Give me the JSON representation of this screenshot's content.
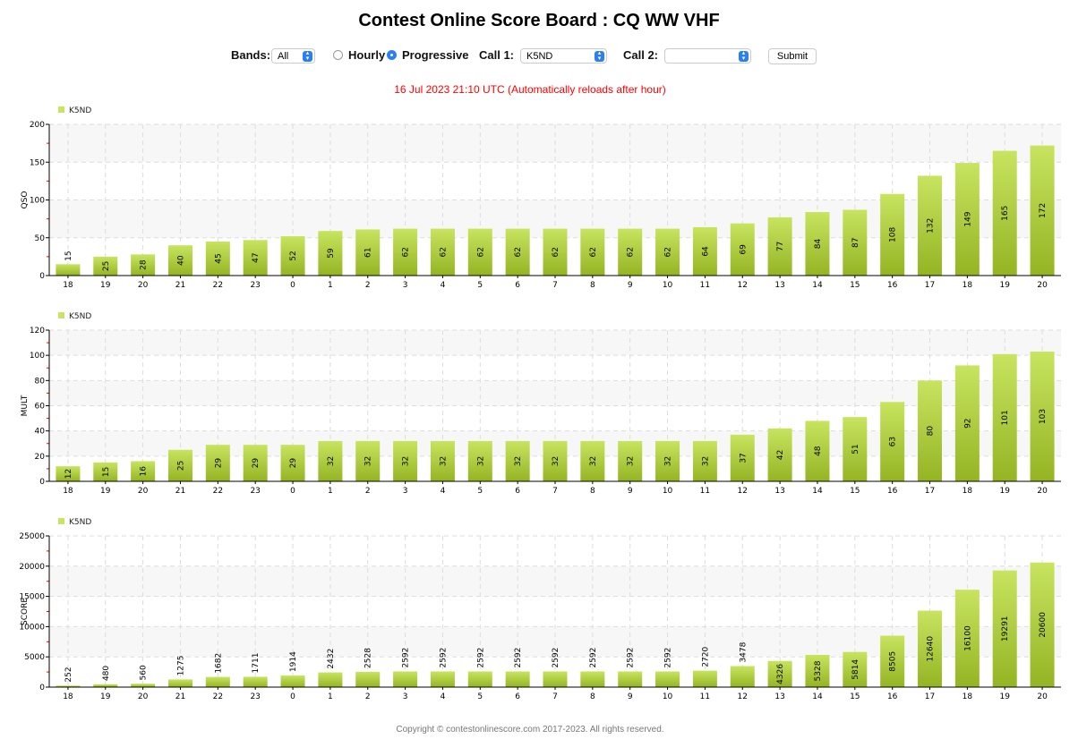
{
  "title": "Contest Online Score Board : CQ WW VHF",
  "controls": {
    "bands_label": "Bands:",
    "bands_value": "All",
    "hourly_label": "Hourly",
    "progressive_label": "Progressive",
    "mode_selected": "Progressive",
    "call1_label": "Call 1:",
    "call1_value": "K5ND",
    "call2_label": "Call 2:",
    "call2_value": "",
    "submit_label": "Submit"
  },
  "status": "16 Jul 2023 21:10 UTC   (Automatically reloads after hour)",
  "footer": "Copyright © contestonlinescore.com 2017-2023. All rights reserved.",
  "colors": {
    "bar_top": "#c8e460",
    "bar_bottom": "#95b423",
    "status": "#ff0000"
  },
  "chart_data": [
    {
      "type": "bar",
      "ylabel": "QSO",
      "legend": "K5ND",
      "legend_position": "top-left",
      "ylim": [
        0,
        200
      ],
      "yticks": [
        0,
        50,
        100,
        150,
        200
      ],
      "categories": [
        "18",
        "19",
        "20",
        "21",
        "22",
        "23",
        "0",
        "1",
        "2",
        "3",
        "4",
        "5",
        "6",
        "7",
        "8",
        "9",
        "10",
        "11",
        "12",
        "13",
        "14",
        "15",
        "16",
        "17",
        "18",
        "19",
        "20"
      ],
      "values": [
        15,
        25,
        28,
        40,
        45,
        47,
        52,
        59,
        61,
        62,
        62,
        62,
        62,
        62,
        62,
        62,
        62,
        64,
        69,
        77,
        84,
        87,
        108,
        132,
        149,
        165,
        172
      ]
    },
    {
      "type": "bar",
      "ylabel": "MULT",
      "legend": "K5ND",
      "legend_position": "top-left",
      "ylim": [
        0,
        120
      ],
      "yticks": [
        0,
        20,
        40,
        60,
        80,
        100,
        120
      ],
      "categories": [
        "18",
        "19",
        "20",
        "21",
        "22",
        "23",
        "0",
        "1",
        "2",
        "3",
        "4",
        "5",
        "6",
        "7",
        "8",
        "9",
        "10",
        "11",
        "12",
        "13",
        "14",
        "15",
        "16",
        "17",
        "18",
        "19",
        "20"
      ],
      "values": [
        12,
        15,
        16,
        25,
        29,
        29,
        29,
        32,
        32,
        32,
        32,
        32,
        32,
        32,
        32,
        32,
        32,
        32,
        37,
        42,
        48,
        51,
        63,
        80,
        92,
        101,
        103
      ]
    },
    {
      "type": "bar",
      "ylabel": "SCORE",
      "legend": "K5ND",
      "legend_position": "top-left",
      "ylim": [
        0,
        25000
      ],
      "yticks": [
        0,
        5000,
        10000,
        15000,
        20000,
        25000
      ],
      "categories": [
        "18",
        "19",
        "20",
        "21",
        "22",
        "23",
        "0",
        "1",
        "2",
        "3",
        "4",
        "5",
        "6",
        "7",
        "8",
        "9",
        "10",
        "11",
        "12",
        "13",
        "14",
        "15",
        "16",
        "17",
        "18",
        "19",
        "20"
      ],
      "values": [
        252,
        480,
        560,
        1275,
        1682,
        1711,
        1914,
        2432,
        2528,
        2592,
        2592,
        2592,
        2592,
        2592,
        2592,
        2592,
        2592,
        2720,
        3478,
        4326,
        5328,
        5814,
        8505,
        12640,
        16100,
        19291,
        20600
      ]
    }
  ]
}
